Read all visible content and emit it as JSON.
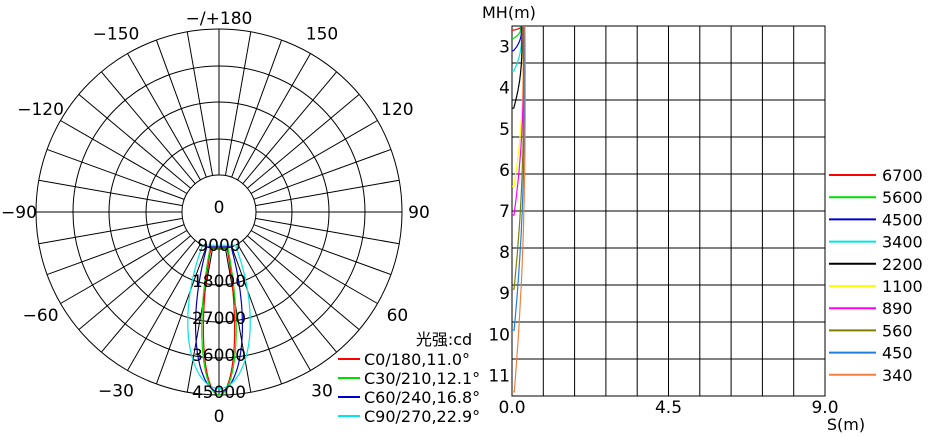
{
  "chart_data": [
    {
      "type": "polar",
      "angle_labels": [
        {
          "angle": 180,
          "text": "−/+180"
        },
        {
          "angle": 150,
          "text": "150"
        },
        {
          "angle": -150,
          "text": "−150"
        },
        {
          "angle": 120,
          "text": "120"
        },
        {
          "angle": -120,
          "text": "−120"
        },
        {
          "angle": 90,
          "text": "90"
        },
        {
          "angle": -90,
          "text": "−90"
        },
        {
          "angle": 60,
          "text": "60"
        },
        {
          "angle": -60,
          "text": "−60"
        },
        {
          "angle": 30,
          "text": "30"
        },
        {
          "angle": -30,
          "text": "−30"
        },
        {
          "angle": 0,
          "text": "0"
        }
      ],
      "radial_labels": [
        "0",
        "9000",
        "18000",
        "27000",
        "36000",
        "45000"
      ],
      "radial_max": 45000,
      "unit_label": "光强:cd",
      "series": [
        {
          "name": "C0/180,11.0°",
          "color": "#ff0000",
          "beam_angle": 11.0,
          "peak": 45000
        },
        {
          "name": "C30/210,12.1°",
          "color": "#00dd00",
          "beam_angle": 12.1,
          "peak": 45000
        },
        {
          "name": "C60/240,16.8°",
          "color": "#0000cc",
          "beam_angle": 16.8,
          "peak": 44000
        },
        {
          "name": "C90/270,22.9°",
          "color": "#00e5e5",
          "beam_angle": 22.9,
          "peak": 43000
        }
      ]
    },
    {
      "type": "line",
      "ylabel": "MH(m)",
      "xlabel": "S(m)",
      "x_ticks": [
        "0.0",
        "4.5",
        "9.0"
      ],
      "xlim": [
        0,
        9
      ],
      "y_ticks": [
        "3",
        "4",
        "5",
        "6",
        "7",
        "8",
        "9",
        "10",
        "11"
      ],
      "ylim": [
        2.5,
        11.5
      ],
      "y_inverted": true,
      "series": [
        {
          "name": "6700",
          "color": "#ff0000",
          "max_height": 2.6,
          "max_width": 0.25
        },
        {
          "name": "5600",
          "color": "#00dd00",
          "max_height": 2.8,
          "max_width": 0.25
        },
        {
          "name": "4500",
          "color": "#0000cc",
          "max_height": 3.1,
          "max_width": 0.27
        },
        {
          "name": "3400",
          "color": "#00e5e5",
          "max_height": 3.6,
          "max_width": 0.28
        },
        {
          "name": "2200",
          "color": "#000000",
          "max_height": 4.5,
          "max_width": 0.29
        },
        {
          "name": "1100",
          "color": "#ffff00",
          "max_height": 6.4,
          "max_width": 0.32
        },
        {
          "name": "890",
          "color": "#ff00ff",
          "max_height": 7.1,
          "max_width": 0.33
        },
        {
          "name": "560",
          "color": "#808000",
          "max_height": 8.9,
          "max_width": 0.34
        },
        {
          "name": "450",
          "color": "#1e7fdf",
          "max_height": 9.9,
          "max_width": 0.36
        },
        {
          "name": "340",
          "color": "#f08040",
          "max_height": 11.4,
          "max_width": 0.38
        }
      ]
    }
  ]
}
